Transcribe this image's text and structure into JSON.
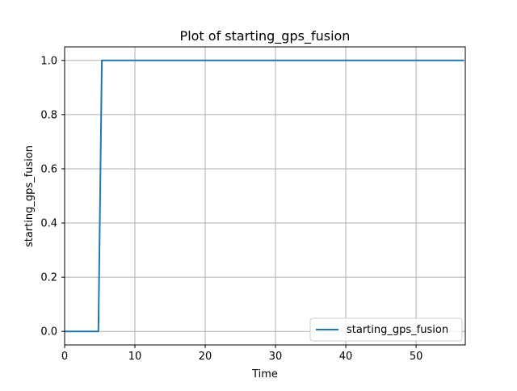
{
  "chart_data": {
    "type": "line",
    "title": "Plot of starting_gps_fusion",
    "xlabel": "Time",
    "ylabel": "starting_gps_fusion",
    "xlim": [
      0,
      57
    ],
    "ylim": [
      -0.05,
      1.05
    ],
    "xticks": [
      0,
      10,
      20,
      30,
      40,
      50
    ],
    "yticks": [
      0.0,
      0.2,
      0.4,
      0.6,
      0.8,
      1.0
    ],
    "xtick_labels": [
      "0",
      "10",
      "20",
      "30",
      "40",
      "50"
    ],
    "ytick_labels": [
      "0.0",
      "0.2",
      "0.4",
      "0.6",
      "0.8",
      "1.0"
    ],
    "grid": true,
    "legend_position": "lower-right",
    "series": [
      {
        "name": "starting_gps_fusion",
        "color": "#1f77b4",
        "x": [
          0,
          4.8,
          5.3,
          56.8
        ],
        "y": [
          0,
          0,
          1,
          1
        ]
      }
    ]
  }
}
